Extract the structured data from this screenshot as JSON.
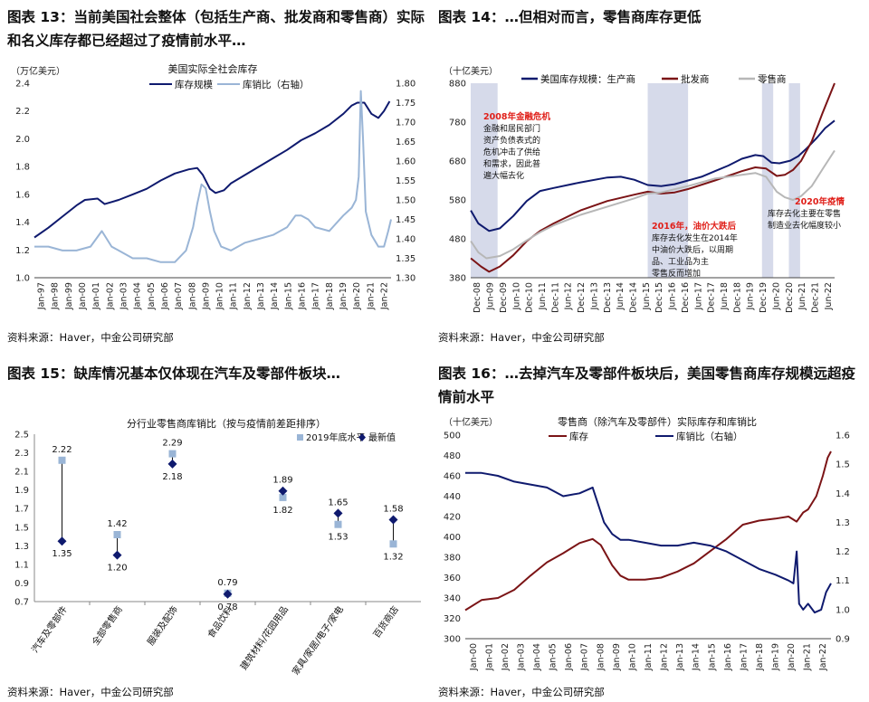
{
  "figures": [
    {
      "title": "图表 13：当前美国社会整体（包括生产商、批发商和零售商）实际和名义库存都已经超过了疫情前水平…",
      "source": "资料来源：Haver，中金公司研究部"
    },
    {
      "title": "图表 14：…但相对而言，零售商库存更低",
      "source": "资料来源：Haver，中金公司研究部"
    },
    {
      "title": "图表 15：缺库情况基本仅体现在汽车及零部件板块…",
      "source": "资料来源：Haver，中金公司研究部"
    },
    {
      "title": "图表 16：…去掉汽车及零部件板块后，美国零售商库存规模远超疫情前水平",
      "source": "资料来源：Haver，中金公司研究部"
    }
  ],
  "colors": {
    "navy": "#0f1a6e",
    "lightblue": "#9ab5d6",
    "maroon": "#7b1416",
    "gray": "#b7b7b7",
    "red": "#e0201a",
    "shade": "#cfd3e6"
  },
  "chart_data": [
    {
      "type": "line",
      "title": "美国实际全社会库存",
      "ylabel": "（万亿美元）",
      "ylim": [
        1.0,
        2.4
      ],
      "y2lim": [
        1.3,
        1.8
      ],
      "yticks": [
        "1.0",
        "1.2",
        "1.4",
        "1.6",
        "1.8",
        "2.0",
        "2.2",
        "2.4"
      ],
      "y2ticks": [
        "1.30",
        "1.35",
        "1.40",
        "1.45",
        "1.50",
        "1.55",
        "1.60",
        "1.65",
        "1.70",
        "1.75",
        "1.80"
      ],
      "xticks": [
        "Jan-97",
        "Jan-98",
        "Jan-99",
        "Jan-00",
        "Jan-01",
        "Jan-02",
        "Jan-03",
        "Jan-04",
        "Jan-05",
        "Jan-06",
        "Jan-07",
        "Jan-08",
        "Jan-09",
        "Jan-10",
        "Jan-11",
        "Jan-12",
        "Jan-13",
        "Jan-14",
        "Jan-15",
        "Jan-16",
        "Jan-17",
        "Jan-18",
        "Jan-19",
        "Jan-20",
        "Jan-21",
        "Jan-22"
      ],
      "x_start": 1997.0,
      "x_end": 2022.4,
      "series": [
        {
          "name": "库存规模",
          "axis": "left",
          "color": "#0f1a6e",
          "x": [
            1997.0,
            1998.0,
            1999.0,
            2000.0,
            2000.6,
            2001.5,
            2002.0,
            2003.0,
            2004.0,
            2005.0,
            2006.0,
            2007.0,
            2008.0,
            2008.6,
            2009.0,
            2009.5,
            2009.9,
            2010.5,
            2011.0,
            2012.0,
            2013.0,
            2014.0,
            2015.0,
            2016.0,
            2017.0,
            2018.0,
            2019.0,
            2019.6,
            2020.0,
            2020.5,
            2021.0,
            2021.5,
            2021.9,
            2022.3
          ],
          "y": [
            1.29,
            1.36,
            1.44,
            1.52,
            1.56,
            1.57,
            1.53,
            1.56,
            1.6,
            1.64,
            1.7,
            1.75,
            1.78,
            1.79,
            1.74,
            1.64,
            1.61,
            1.63,
            1.68,
            1.74,
            1.8,
            1.86,
            1.92,
            1.99,
            2.04,
            2.1,
            2.18,
            2.24,
            2.26,
            2.26,
            2.18,
            2.15,
            2.2,
            2.27
          ]
        },
        {
          "name": "库销比（右轴）",
          "axis": "right",
          "color": "#9ab5d6",
          "x": [
            1997.0,
            1998.0,
            1999.0,
            2000.0,
            2001.0,
            2001.8,
            2002.5,
            2003.0,
            2004.0,
            2005.0,
            2006.0,
            2007.0,
            2007.8,
            2008.3,
            2008.6,
            2008.9,
            2009.2,
            2009.5,
            2009.8,
            2010.3,
            2011.0,
            2012.0,
            2013.0,
            2014.0,
            2015.0,
            2015.6,
            2016.0,
            2016.5,
            2017.0,
            2018.0,
            2019.0,
            2019.6,
            2019.9,
            2020.1,
            2020.25,
            2020.4,
            2020.6,
            2021.0,
            2021.5,
            2021.9,
            2022.2,
            2022.4
          ],
          "y": [
            1.38,
            1.38,
            1.37,
            1.37,
            1.38,
            1.42,
            1.38,
            1.37,
            1.35,
            1.35,
            1.34,
            1.34,
            1.37,
            1.43,
            1.49,
            1.54,
            1.53,
            1.47,
            1.42,
            1.38,
            1.37,
            1.39,
            1.4,
            1.41,
            1.43,
            1.46,
            1.46,
            1.45,
            1.43,
            1.42,
            1.46,
            1.48,
            1.5,
            1.56,
            1.78,
            1.66,
            1.47,
            1.41,
            1.38,
            1.38,
            1.42,
            1.45
          ]
        }
      ]
    },
    {
      "type": "line",
      "ylabel": "（十亿美元）",
      "ylim": [
        380,
        900
      ],
      "yticks": [
        "380",
        "480",
        "580",
        "680",
        "780",
        "880"
      ],
      "xticks": [
        "Dec-08",
        "Jun-09",
        "Dec-09",
        "Jun-10",
        "Dec-10",
        "Jun-11",
        "Dec-11",
        "Jun-12",
        "Dec-12",
        "Jun-13",
        "Dec-13",
        "Jun-14",
        "Dec-14",
        "Jun-15",
        "Dec-15",
        "Jun-16",
        "Dec-16",
        "Jun-17",
        "Dec-17",
        "Jun-18",
        "Dec-18",
        "Jun-19",
        "Dec-19",
        "Jun-20",
        "Dec-20",
        "Jun-21",
        "Dec-21",
        "Jun-22"
      ],
      "x_start": 2008.917,
      "x_end": 2022.45,
      "shaded": [
        [
          2008.917,
          2009.917
        ],
        [
          2015.5,
          2017.0
        ],
        [
          2019.75,
          2020.167
        ],
        [
          2020.75,
          2021.167
        ]
      ],
      "series": [
        {
          "name": "美国库存规模：生产商",
          "color": "#0f1a6e",
          "x": [
            2008.92,
            2009.2,
            2009.6,
            2010.0,
            2010.5,
            2011.0,
            2011.5,
            2012.0,
            2013.0,
            2014.0,
            2014.5,
            2015.0,
            2015.5,
            2016.0,
            2016.5,
            2017.0,
            2017.5,
            2018.0,
            2018.5,
            2019.0,
            2019.5,
            2019.8,
            2020.1,
            2020.4,
            2020.8,
            2021.1,
            2021.4,
            2021.8,
            2022.1,
            2022.45
          ],
          "y": [
            560,
            525,
            505,
            512,
            545,
            585,
            612,
            620,
            635,
            648,
            650,
            642,
            628,
            625,
            630,
            640,
            650,
            665,
            680,
            698,
            708,
            705,
            688,
            686,
            693,
            705,
            725,
            755,
            780,
            800
          ]
        },
        {
          "name": "批发商",
          "color": "#7b1416",
          "x": [
            2008.92,
            2009.3,
            2009.6,
            2010.0,
            2010.5,
            2011.0,
            2011.5,
            2012.0,
            2013.0,
            2014.0,
            2015.0,
            2015.5,
            2016.0,
            2016.5,
            2017.0,
            2018.0,
            2019.0,
            2019.5,
            2019.9,
            2020.3,
            2020.6,
            2020.9,
            2021.2,
            2021.6,
            2022.0,
            2022.45
          ],
          "y": [
            432,
            410,
            396,
            410,
            440,
            478,
            505,
            525,
            560,
            585,
            602,
            610,
            605,
            608,
            617,
            640,
            665,
            675,
            672,
            652,
            655,
            668,
            692,
            745,
            820,
            900
          ]
        },
        {
          "name": "零售商",
          "color": "#b7b7b7",
          "x": [
            2008.92,
            2009.2,
            2009.5,
            2010.0,
            2010.5,
            2011.0,
            2011.5,
            2012.0,
            2013.0,
            2014.0,
            2015.0,
            2015.5,
            2016.0,
            2017.0,
            2018.0,
            2019.0,
            2019.5,
            2019.9,
            2020.3,
            2020.6,
            2020.9,
            2021.2,
            2021.6,
            2022.0,
            2022.45
          ],
          "y": [
            478,
            448,
            432,
            438,
            456,
            480,
            502,
            520,
            548,
            570,
            592,
            605,
            608,
            625,
            645,
            655,
            660,
            650,
            610,
            595,
            588,
            598,
            625,
            670,
            720
          ]
        }
      ],
      "annotations": [
        {
          "title": "2008年金融危机",
          "lines": [
            "金融和居民部门",
            "资产负债表式的",
            "危机冲击了供给",
            "和需求，因此普",
            "遍大幅去化"
          ]
        },
        {
          "title": "2016年，油价大跌后",
          "lines": [
            "库存去化发生在2014年",
            "中油价大跌后，以周期",
            "品、工业品为主",
            "零售反而增加"
          ]
        },
        {
          "title": "2020年疫情",
          "lines": [
            "库存去化主要在零售",
            "制造业去化幅度较小"
          ]
        }
      ]
    },
    {
      "type": "scatter",
      "title": "分行业零售商库销比（按与疫情前差距排序）",
      "ylim": [
        0.7,
        2.5
      ],
      "yticks": [
        "0.7",
        "0.9",
        "1.1",
        "1.3",
        "1.5",
        "1.7",
        "1.9",
        "2.1",
        "2.3",
        "2.5"
      ],
      "categories": [
        "汽车及零部件",
        "全部零售商",
        "服装及配饰",
        "食品饮料",
        "建筑材料/花园用品",
        "家具/家居/电子/家电",
        "百货商店"
      ],
      "series": [
        {
          "name": "2019年底水平",
          "marker": "square",
          "color": "#9ab5d6",
          "values": [
            2.22,
            1.42,
            2.29,
            0.79,
            1.82,
            1.53,
            1.32
          ],
          "labels": [
            "2.22",
            "1.42",
            "2.29",
            "0.79",
            "1.82",
            "1.53",
            "1.32"
          ]
        },
        {
          "name": "最新值",
          "marker": "diamond",
          "color": "#0f1a6e",
          "values": [
            1.35,
            1.2,
            2.18,
            0.78,
            1.89,
            1.65,
            1.58
          ],
          "labels": [
            "1.35",
            "1.20",
            "2.18",
            "0.78",
            "1.89",
            "1.65",
            "1.58"
          ]
        }
      ]
    },
    {
      "type": "line",
      "title": "零售商（除汽车及零部件）实际库存和库销比",
      "ylabel": "（十亿美元）",
      "ylim": [
        300,
        500
      ],
      "y2lim": [
        0.9,
        1.6
      ],
      "yticks": [
        "300",
        "320",
        "340",
        "360",
        "380",
        "400",
        "420",
        "440",
        "460",
        "480",
        "500"
      ],
      "y2ticks": [
        "0.9",
        "1.0",
        "1.1",
        "1.2",
        "1.3",
        "1.4",
        "1.5",
        "1.6"
      ],
      "xticks": [
        "Jan-00",
        "Jan-01",
        "Jan-02",
        "Jan-03",
        "Jan-04",
        "Jan-05",
        "Jan-06",
        "Jan-07",
        "Jan-08",
        "Jan-09",
        "Jan-10",
        "Jan-11",
        "Jan-12",
        "Jan-13",
        "Jan-14",
        "Jan-15",
        "Jan-16",
        "Jan-17",
        "Jan-18",
        "Jan-19",
        "Jan-20",
        "Jan-21",
        "Jan-22"
      ],
      "x_start": 2000.0,
      "x_end": 2022.4,
      "series": [
        {
          "name": "库存",
          "axis": "left",
          "color": "#7b1416",
          "x": [
            2000.0,
            2001.0,
            2002.0,
            2003.0,
            2004.0,
            2005.0,
            2006.0,
            2007.0,
            2007.8,
            2008.3,
            2009.0,
            2009.5,
            2010.0,
            2011.0,
            2012.0,
            2013.0,
            2014.0,
            2015.0,
            2016.0,
            2017.0,
            2018.0,
            2019.0,
            2019.8,
            2020.3,
            2020.7,
            2021.0,
            2021.5,
            2021.9,
            2022.2,
            2022.4
          ],
          "y": [
            328,
            338,
            340,
            348,
            362,
            375,
            384,
            394,
            398,
            392,
            372,
            362,
            358,
            358,
            360,
            366,
            374,
            386,
            398,
            412,
            416,
            418,
            420,
            415,
            424,
            427,
            440,
            460,
            478,
            484
          ]
        },
        {
          "name": "库销比（右轴）",
          "axis": "right",
          "color": "#0f1a6e",
          "x": [
            2000.0,
            2001.0,
            2002.0,
            2003.0,
            2004.0,
            2005.0,
            2006.0,
            2007.0,
            2007.8,
            2008.5,
            2009.0,
            2009.5,
            2010.0,
            2011.0,
            2012.0,
            2013.0,
            2014.0,
            2015.0,
            2016.0,
            2017.0,
            2018.0,
            2019.0,
            2019.8,
            2020.1,
            2020.3,
            2020.45,
            2020.7,
            2021.0,
            2021.4,
            2021.8,
            2022.1,
            2022.4
          ],
          "y": [
            1.47,
            1.47,
            1.46,
            1.44,
            1.43,
            1.42,
            1.39,
            1.4,
            1.42,
            1.3,
            1.26,
            1.24,
            1.24,
            1.23,
            1.22,
            1.22,
            1.23,
            1.22,
            1.2,
            1.17,
            1.14,
            1.12,
            1.1,
            1.09,
            1.2,
            1.02,
            1.0,
            1.02,
            0.99,
            1.0,
            1.06,
            1.09
          ]
        }
      ]
    }
  ]
}
